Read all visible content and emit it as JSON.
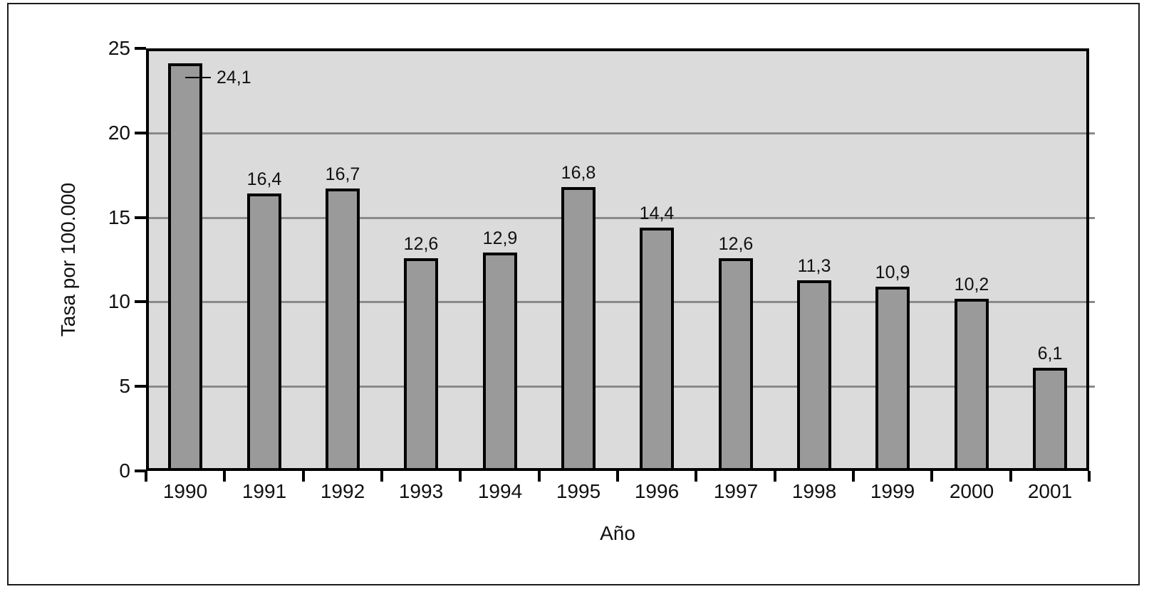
{
  "figure": {
    "background_color": "#ffffff",
    "frame_color": "#1a1a1a"
  },
  "chart_data": {
    "type": "bar",
    "title": "",
    "categories": [
      "1990",
      "1991",
      "1992",
      "1993",
      "1994",
      "1995",
      "1996",
      "1997",
      "1998",
      "1999",
      "2000",
      "2001"
    ],
    "values": [
      24.1,
      16.4,
      16.7,
      12.6,
      12.9,
      16.8,
      14.4,
      12.6,
      11.3,
      10.9,
      10.2,
      6.1
    ],
    "value_labels": [
      "24,1",
      "16,4",
      "16,7",
      "12,6",
      "12,9",
      "16,8",
      "14,4",
      "12,6",
      "11,3",
      "10,9",
      "10,2",
      "6,1"
    ],
    "xlabel": "Año",
    "ylabel": "Tasa por 100.000",
    "ylim": [
      0,
      25
    ],
    "yticks": [
      0,
      5,
      10,
      15,
      20,
      25
    ],
    "ytick_labels": [
      "0",
      "5",
      "10",
      "15",
      "20",
      "25"
    ],
    "gridlines_at": [
      5,
      10,
      15,
      20
    ],
    "grid": true,
    "legend_position": "none",
    "first_bar_label_has_leader_line": true,
    "colors": {
      "bar_fill": "#9a9a9a",
      "bar_border": "#000000",
      "plot_background": "#dbdbdb",
      "gridline": "#8a8a8a",
      "axis": "#000000",
      "text": "#111111"
    }
  }
}
